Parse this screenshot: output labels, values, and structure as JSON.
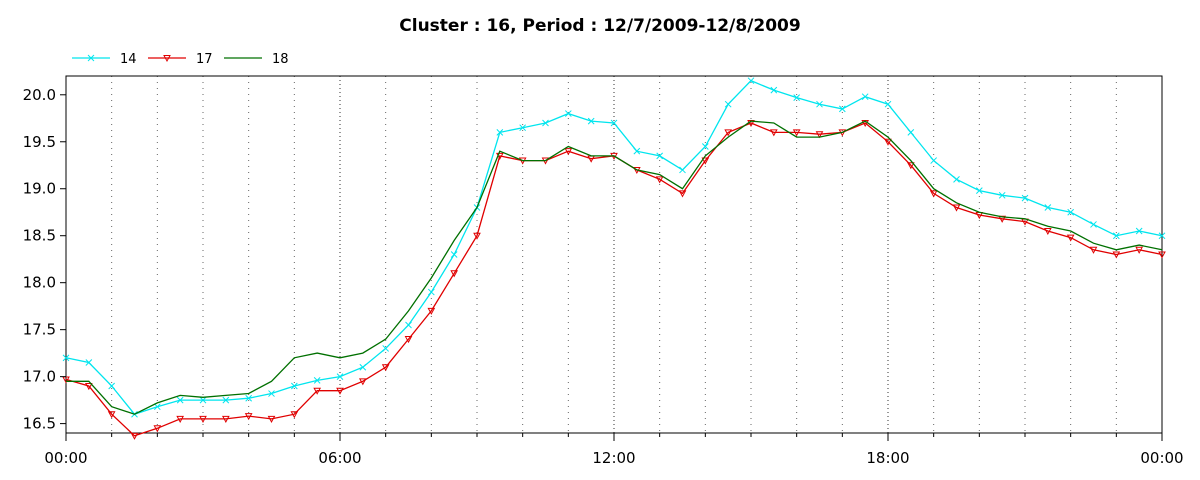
{
  "chart_data": {
    "type": "line",
    "title": "Cluster : 16, Period : 12/7/2009-12/8/2009",
    "xlabel": "",
    "ylabel": "",
    "x_unit": "hours",
    "xlim": [
      0,
      24
    ],
    "ylim": [
      16.4,
      20.2
    ],
    "x_ticks": [
      {
        "value": 0,
        "label": "00:00"
      },
      {
        "value": 6,
        "label": "06:00"
      },
      {
        "value": 12,
        "label": "12:00"
      },
      {
        "value": 18,
        "label": "18:00"
      },
      {
        "value": 24,
        "label": "00:00"
      }
    ],
    "y_ticks": [
      16.5,
      17.0,
      17.5,
      18.0,
      18.5,
      19.0,
      19.5,
      20.0
    ],
    "grid": {
      "x_minor_dotted": true,
      "y": false
    },
    "legend": {
      "placement": "top-left"
    },
    "x": [
      0.0,
      0.5,
      1.0,
      1.5,
      2.0,
      2.5,
      3.0,
      3.5,
      4.0,
      4.5,
      5.0,
      5.5,
      6.0,
      6.5,
      7.0,
      7.5,
      8.0,
      8.5,
      9.0,
      9.5,
      10.0,
      10.5,
      11.0,
      11.5,
      12.0,
      12.5,
      13.0,
      13.5,
      14.0,
      14.5,
      15.0,
      15.5,
      16.0,
      16.5,
      17.0,
      17.5,
      18.0,
      18.5,
      19.0,
      19.5,
      20.0,
      20.5,
      21.0,
      21.5,
      22.0,
      22.5,
      23.0,
      23.5,
      24.0
    ],
    "series": [
      {
        "name": "14",
        "color": "#00e5ee",
        "marker": "x",
        "values": [
          17.2,
          17.15,
          16.9,
          16.6,
          16.68,
          16.75,
          16.75,
          16.75,
          16.77,
          16.82,
          16.9,
          16.96,
          17.0,
          17.1,
          17.3,
          17.55,
          17.9,
          18.3,
          18.8,
          19.6,
          19.65,
          19.7,
          19.8,
          19.72,
          19.7,
          19.4,
          19.35,
          19.2,
          19.45,
          19.9,
          20.15,
          20.05,
          19.97,
          19.9,
          19.85,
          19.98,
          19.9,
          19.6,
          19.3,
          19.1,
          18.98,
          18.93,
          18.9,
          18.8,
          18.75,
          18.62,
          18.5,
          18.55,
          18.5
        ]
      },
      {
        "name": "17",
        "color": "#e00000",
        "marker": "triangle-down",
        "values": [
          16.97,
          16.9,
          16.6,
          16.37,
          16.45,
          16.55,
          16.55,
          16.55,
          16.58,
          16.55,
          16.6,
          16.85,
          16.85,
          16.95,
          17.1,
          17.4,
          17.7,
          18.1,
          18.5,
          19.35,
          19.3,
          19.3,
          19.4,
          19.32,
          19.35,
          19.2,
          19.1,
          18.95,
          19.3,
          19.6,
          19.7,
          19.6,
          19.6,
          19.58,
          19.6,
          19.7,
          19.5,
          19.25,
          18.95,
          18.8,
          18.72,
          18.68,
          18.65,
          18.55,
          18.48,
          18.35,
          18.3,
          18.35,
          18.3
        ]
      },
      {
        "name": "18",
        "color": "#007000",
        "marker": "none",
        "values": [
          16.95,
          16.95,
          16.68,
          16.6,
          16.72,
          16.8,
          16.78,
          16.8,
          16.82,
          16.95,
          17.2,
          17.25,
          17.2,
          17.25,
          17.4,
          17.7,
          18.05,
          18.45,
          18.8,
          19.4,
          19.3,
          19.3,
          19.45,
          19.35,
          19.35,
          19.2,
          19.15,
          19.0,
          19.35,
          19.55,
          19.72,
          19.7,
          19.55,
          19.55,
          19.6,
          19.72,
          19.55,
          19.3,
          19.0,
          18.85,
          18.75,
          18.7,
          18.68,
          18.6,
          18.55,
          18.42,
          18.35,
          18.4,
          18.35
        ]
      }
    ]
  }
}
